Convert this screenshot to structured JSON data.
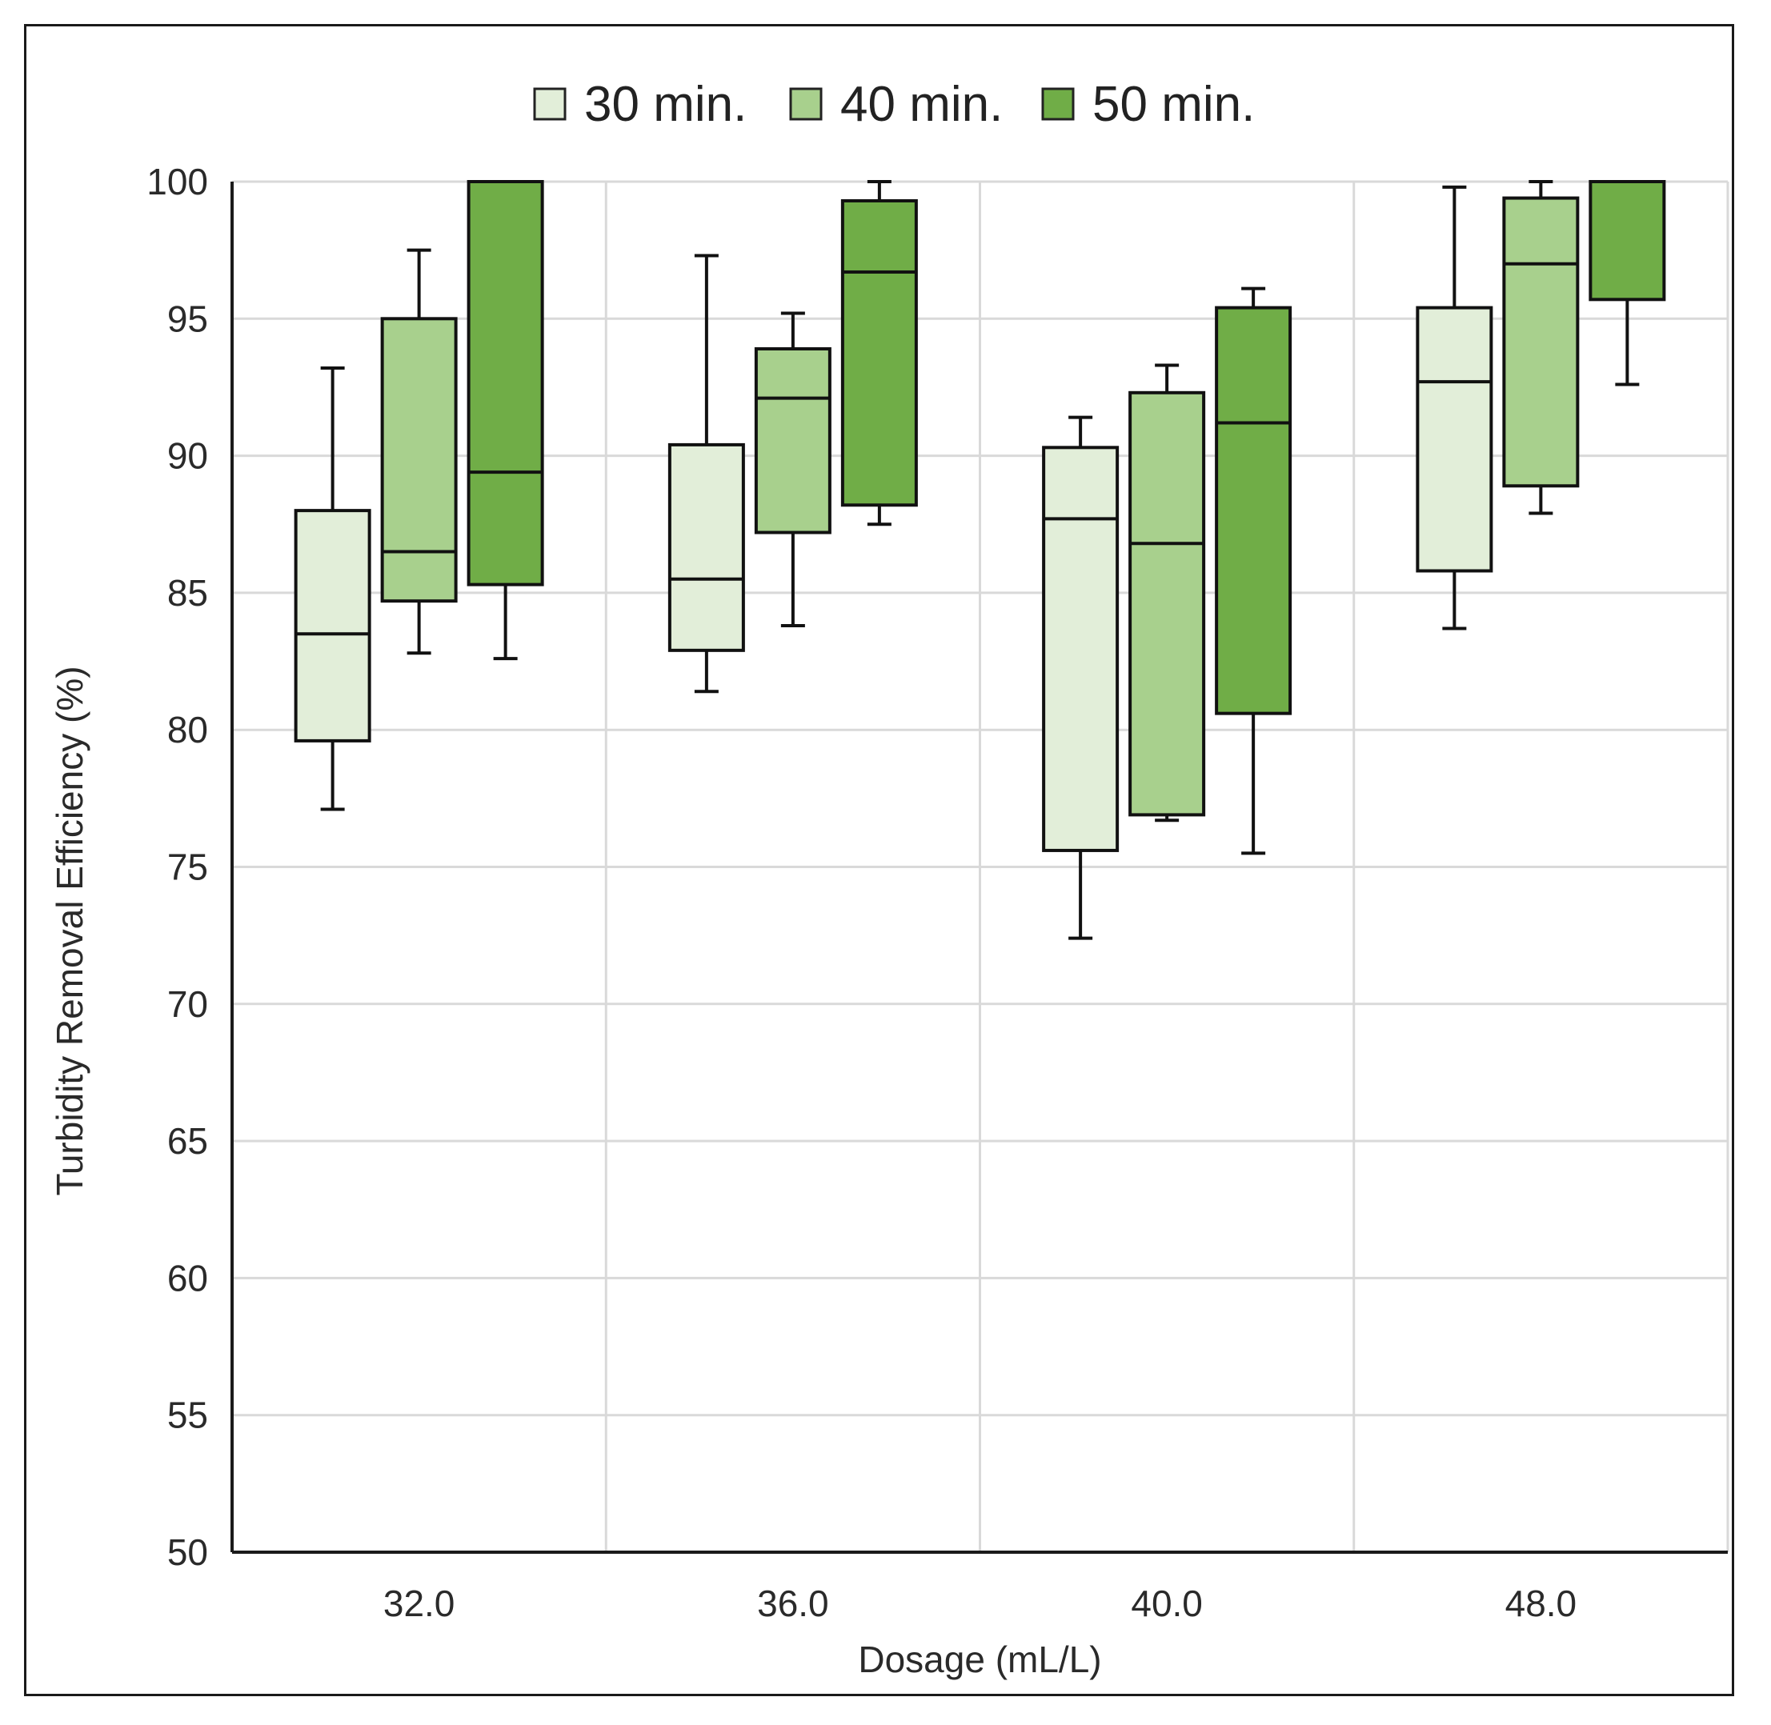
{
  "chart_data": {
    "type": "boxplot",
    "title": "",
    "xlabel": "Dosage (mL/L)",
    "ylabel": "Turbidity Removal Efficiency (%)",
    "ylim": [
      50,
      100
    ],
    "yticks": [
      50,
      55,
      60,
      65,
      70,
      75,
      80,
      85,
      90,
      95,
      100
    ],
    "categories": [
      "32.0",
      "36.0",
      "40.0",
      "48.0"
    ],
    "legend_position": "top-center",
    "series": [
      {
        "name": "30 min.",
        "color": "#e2eed9",
        "boxes": [
          {
            "min": 77.1,
            "q1": 79.6,
            "median": 83.5,
            "q3": 88.0,
            "max": 93.2
          },
          {
            "min": 81.4,
            "q1": 82.9,
            "median": 85.5,
            "q3": 90.4,
            "max": 97.3
          },
          {
            "min": 72.4,
            "q1": 75.6,
            "median": 87.7,
            "q3": 90.3,
            "max": 91.4
          },
          {
            "min": 83.7,
            "q1": 85.8,
            "median": 92.7,
            "q3": 95.4,
            "max": 99.8
          }
        ]
      },
      {
        "name": "40 min.",
        "color": "#a8d08d",
        "boxes": [
          {
            "min": 82.8,
            "q1": 84.7,
            "median": 86.5,
            "q3": 95.0,
            "max": 97.5
          },
          {
            "min": 83.8,
            "q1": 87.2,
            "median": 92.1,
            "q3": 93.9,
            "max": 95.2
          },
          {
            "min": 76.7,
            "q1": 76.9,
            "median": 86.8,
            "q3": 92.3,
            "max": 93.3
          },
          {
            "min": 87.9,
            "q1": 88.9,
            "median": 97.0,
            "q3": 99.4,
            "max": 100.0
          }
        ]
      },
      {
        "name": "50 min.",
        "color": "#70ad47",
        "boxes": [
          {
            "min": 82.6,
            "q1": 85.3,
            "median": 89.4,
            "q3": 100.0,
            "max": 100.0
          },
          {
            "min": 87.5,
            "q1": 88.2,
            "median": 96.7,
            "q3": 99.3,
            "max": 100.0
          },
          {
            "min": 75.5,
            "q1": 80.6,
            "median": 91.2,
            "q3": 95.4,
            "max": 96.1
          },
          {
            "min": 92.6,
            "q1": 95.7,
            "median": 100.0,
            "q3": 100.0,
            "max": 100.0
          }
        ]
      }
    ],
    "grid": true
  }
}
